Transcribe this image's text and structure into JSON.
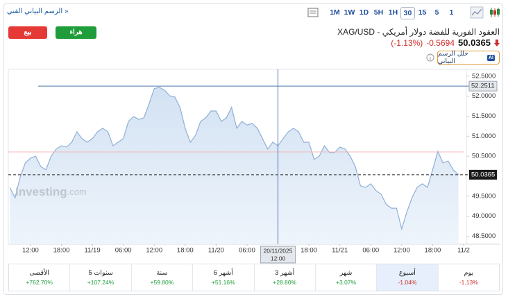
{
  "toolbar": {
    "technical_link": "الرسم البياني الفني »",
    "timeframes": [
      "1M",
      "1W",
      "1D",
      "5H",
      "1H",
      "30",
      "15",
      "5",
      "1"
    ],
    "selected": "30"
  },
  "buttons": {
    "sell": "بيع",
    "buy": "هراء",
    "analyze": "حلل الرسم البياني",
    "ai_badge": "AI"
  },
  "quote": {
    "title": "XAG/USD - العقود الفورية للفضة دولار أمريكي",
    "price": "50.0365",
    "change": "-0.5694",
    "change_pct": "(-1.13%)"
  },
  "chart_data": {
    "type": "area",
    "color": "#8fb0d6",
    "values": [
      49.72,
      49.46,
      49.98,
      50.33,
      50.45,
      50.5,
      50.24,
      50.16,
      50.5,
      50.68,
      50.76,
      50.73,
      50.85,
      51.11,
      50.94,
      50.85,
      50.94,
      51.11,
      51.2,
      51.11,
      50.76,
      50.85,
      50.94,
      51.37,
      51.49,
      51.42,
      51.46,
      51.81,
      52.19,
      52.22,
      52.15,
      52.01,
      51.98,
      51.72,
      51.2,
      50.85,
      51.02,
      51.37,
      51.46,
      51.63,
      51.63,
      51.37,
      51.46,
      51.72,
      51.2,
      51.37,
      51.28,
      51.32,
      51.2,
      50.94,
      50.68,
      50.85,
      50.76,
      50.94,
      51.11,
      51.2,
      51.11,
      50.85,
      50.85,
      50.42,
      50.5,
      50.76,
      50.59,
      50.59,
      50.73,
      50.68,
      50.5,
      50.24,
      49.76,
      49.72,
      49.81,
      49.64,
      49.55,
      49.29,
      49.2,
      49.2,
      48.68,
      49.11,
      49.46,
      49.72,
      49.81,
      49.72,
      50.16,
      50.62,
      50.33,
      50.38,
      50.16,
      50.04
    ],
    "xlim": [
      -0.3,
      88
    ],
    "xticks": [
      {
        "value": 4,
        "label": "12:00"
      },
      {
        "value": 10,
        "label": "18:00"
      },
      {
        "value": 16,
        "label": "11/19"
      },
      {
        "value": 22,
        "label": "06:00"
      },
      {
        "value": 28,
        "label": "12:00"
      },
      {
        "value": 34,
        "label": "18:00"
      },
      {
        "value": 40,
        "label": "11/20"
      },
      {
        "value": 46,
        "label": "06:00"
      },
      {
        "value": 58,
        "label": "18:00"
      },
      {
        "value": 64,
        "label": "11/21"
      },
      {
        "value": 70,
        "label": "06:00"
      },
      {
        "value": 76,
        "label": "12:00"
      },
      {
        "value": 82,
        "label": "18:00"
      },
      {
        "value": 88,
        "label": "11/2"
      }
    ],
    "ylim": [
      48.3,
      52.67
    ],
    "yticks": [
      {
        "value": 52.5,
        "label": "52.5000"
      },
      {
        "value": 52,
        "label": "52.0000"
      },
      {
        "value": 51.5,
        "label": "51.5000"
      },
      {
        "value": 51,
        "label": "51.0000"
      },
      {
        "value": 50.5,
        "label": "50.5000"
      },
      {
        "value": 49.5,
        "label": "49.5000"
      },
      {
        "value": 49,
        "label": "49.0000"
      },
      {
        "value": 48.5,
        "label": "48.5000"
      }
    ],
    "current_price": {
      "value": 50.0365,
      "label": "50.0365"
    },
    "reference_line": 50.6059,
    "crosshair": {
      "x": 52,
      "x_label": [
        "20/11/2025",
        "12:00"
      ],
      "y": {
        "value": 52.2511,
        "label": "52.2511"
      }
    },
    "watermark": [
      "Investing",
      ".com"
    ]
  },
  "performance": [
    {
      "period": "الأقصى",
      "change": "+762.70%"
    },
    {
      "period": "5 سنوات",
      "change": "+107.24%"
    },
    {
      "period": "سنة",
      "change": "+59.80%"
    },
    {
      "period": "6 أشهر",
      "change": "+51.16%"
    },
    {
      "period": "3 أشهر",
      "change": "+28.80%"
    },
    {
      "period": "شهر",
      "change": "+3.07%"
    },
    {
      "period": "أسبوع",
      "change": "-1.04%"
    },
    {
      "period": "يوم",
      "change": "-1.13%"
    }
  ],
  "performance_selected": 6
}
